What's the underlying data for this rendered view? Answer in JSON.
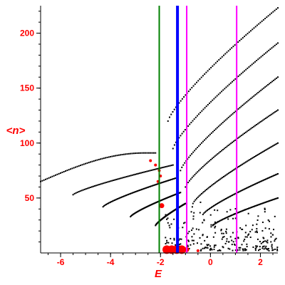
{
  "chart_data": {
    "type": "scatter",
    "xlabel": "E",
    "ylabel": "<n>",
    "xlim": [
      -6.8,
      2.7
    ],
    "ylim": [
      0,
      225
    ],
    "x_ticks": [
      -6,
      -4,
      -2,
      0,
      2
    ],
    "x_tick_labels": [
      "-6",
      "-4",
      "-2",
      "0",
      "2"
    ],
    "y_ticks": [
      50,
      100,
      150,
      200
    ],
    "y_tick_labels": [
      "50",
      "100",
      "150",
      "200"
    ],
    "grid": false,
    "colors": {
      "axis": "#000000",
      "labels": "#ff0000",
      "points": "#000000",
      "highlight_points": "#ff0000",
      "line_green": "#008000",
      "line_blue": "#0000ff",
      "line_magenta": "#ff00ff"
    },
    "vertical_lines": [
      {
        "x": -2.05,
        "color": "#008000"
      },
      {
        "x": -1.32,
        "color": "#0000ff"
      },
      {
        "x": -0.95,
        "color": "#ff00ff"
      },
      {
        "x": 1.05,
        "color": "#ff00ff"
      }
    ],
    "series": [
      {
        "x_range": [
          -6.8,
          -2.2
        ],
        "y_range": [
          65,
          91
        ],
        "curve": "rising_then_flat"
      },
      {
        "x_range": [
          -5.5,
          -1.5
        ],
        "y_range": [
          53,
          80
        ],
        "curve": "rising"
      },
      {
        "x_range": [
          -4.3,
          -1.4
        ],
        "y_range": [
          42,
          68
        ],
        "curve": "rising"
      },
      {
        "x_range": [
          -3.2,
          -1.2
        ],
        "y_range": [
          33,
          55
        ],
        "curve": "rising"
      },
      {
        "x_range": [
          -2.2,
          -1.0
        ],
        "y_range": [
          25,
          45
        ],
        "curve": "rising"
      },
      {
        "x_range": [
          -1.7,
          2.7
        ],
        "y_range": [
          120,
          223
        ],
        "curve": "rising"
      },
      {
        "x_range": [
          -1.5,
          2.7
        ],
        "y_range": [
          95,
          191
        ],
        "curve": "rising"
      },
      {
        "x_range": [
          -1.2,
          2.7
        ],
        "y_range": [
          75,
          160
        ],
        "curve": "rising"
      },
      {
        "x_range": [
          -1.0,
          2.7
        ],
        "y_range": [
          60,
          130
        ],
        "curve": "rising"
      },
      {
        "x_range": [
          -0.7,
          2.7
        ],
        "y_range": [
          45,
          100
        ],
        "curve": "rising"
      },
      {
        "x_range": [
          -0.3,
          2.7
        ],
        "y_range": [
          35,
          72
        ],
        "curve": "rising"
      },
      {
        "x_range": [
          0.1,
          2.7
        ],
        "y_range": [
          25,
          50
        ],
        "curve": "rising"
      }
    ],
    "highlight_points": [
      {
        "x": -1.35,
        "y": 3,
        "size": "large"
      },
      {
        "x": -1.15,
        "y": 3,
        "size": "large"
      },
      {
        "x": -1.55,
        "y": 3,
        "size": "large"
      },
      {
        "x": -1.75,
        "y": 3,
        "size": "large"
      },
      {
        "x": -0.95,
        "y": 3,
        "size": "medium"
      },
      {
        "x": -0.5,
        "y": 2,
        "size": "small"
      },
      {
        "x": -1.95,
        "y": 43,
        "size": "medium"
      },
      {
        "x": -2.1,
        "y": 65,
        "size": "small"
      },
      {
        "x": -2.05,
        "y": 75,
        "size": "small"
      },
      {
        "x": -2.2,
        "y": 80,
        "size": "small"
      },
      {
        "x": -2.0,
        "y": 70,
        "size": "small"
      },
      {
        "x": -2.4,
        "y": 84,
        "size": "small"
      }
    ]
  }
}
